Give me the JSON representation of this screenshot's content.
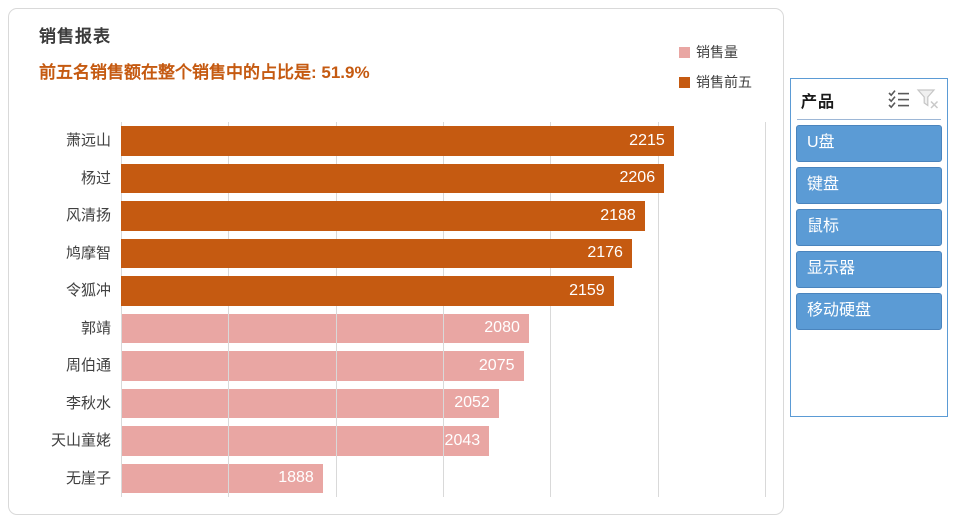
{
  "chart": {
    "title": "销售报表",
    "subtitle": "前五名销售额在整个销售中的占比是: 51.9%",
    "title_color": "#3B3B3B",
    "subtitle_color": "#C55A11",
    "legend": [
      {
        "label": "销售量",
        "color": "#E9A6A3"
      },
      {
        "label": "销售前五",
        "color": "#C55A11"
      }
    ]
  },
  "chart_data": {
    "type": "bar",
    "orientation": "horizontal",
    "title": "销售报表",
    "categories": [
      "萧远山",
      "杨过",
      "风清扬",
      "鸠摩智",
      "令狐冲",
      "郭靖",
      "周伯通",
      "李秋水",
      "天山童姥",
      "无崖子"
    ],
    "values": [
      2215,
      2206,
      2188,
      2176,
      2159,
      2080,
      2075,
      2052,
      2043,
      1888
    ],
    "bar_series": [
      "销售前五",
      "销售前五",
      "销售前五",
      "销售前五",
      "销售前五",
      "销售量",
      "销售量",
      "销售量",
      "销售量",
      "销售量"
    ],
    "series": [
      {
        "name": "销售前五",
        "color": "#C55A11",
        "values": [
          2215,
          2206,
          2188,
          2176,
          2159
        ]
      },
      {
        "name": "销售量",
        "color": "#E9A6A3",
        "values": [
          2080,
          2075,
          2052,
          2043,
          1888
        ]
      }
    ],
    "colors": {
      "销售量": "#E9A6A3",
      "销售前五": "#C55A11"
    },
    "xlim": [
      1700,
      2300
    ],
    "gridlines": [
      1700,
      1800,
      1900,
      2000,
      2100,
      2200,
      2300
    ],
    "grid": true,
    "data_labels": true,
    "data_label_color": "#FFFFFF",
    "legend_position": "top-right",
    "xlabel": "",
    "ylabel": ""
  },
  "slicer": {
    "title": "产品",
    "items": [
      {
        "label": "U盘",
        "selected": true
      },
      {
        "label": "键盘",
        "selected": true
      },
      {
        "label": "鼠标",
        "selected": true
      },
      {
        "label": "显示器",
        "selected": true
      },
      {
        "label": "移动硬盘",
        "selected": true
      }
    ],
    "selected_fill": "#5B9BD5",
    "border_color": "#5B9BD5",
    "icons": [
      "multi-select-icon",
      "clear-filter-icon"
    ]
  }
}
